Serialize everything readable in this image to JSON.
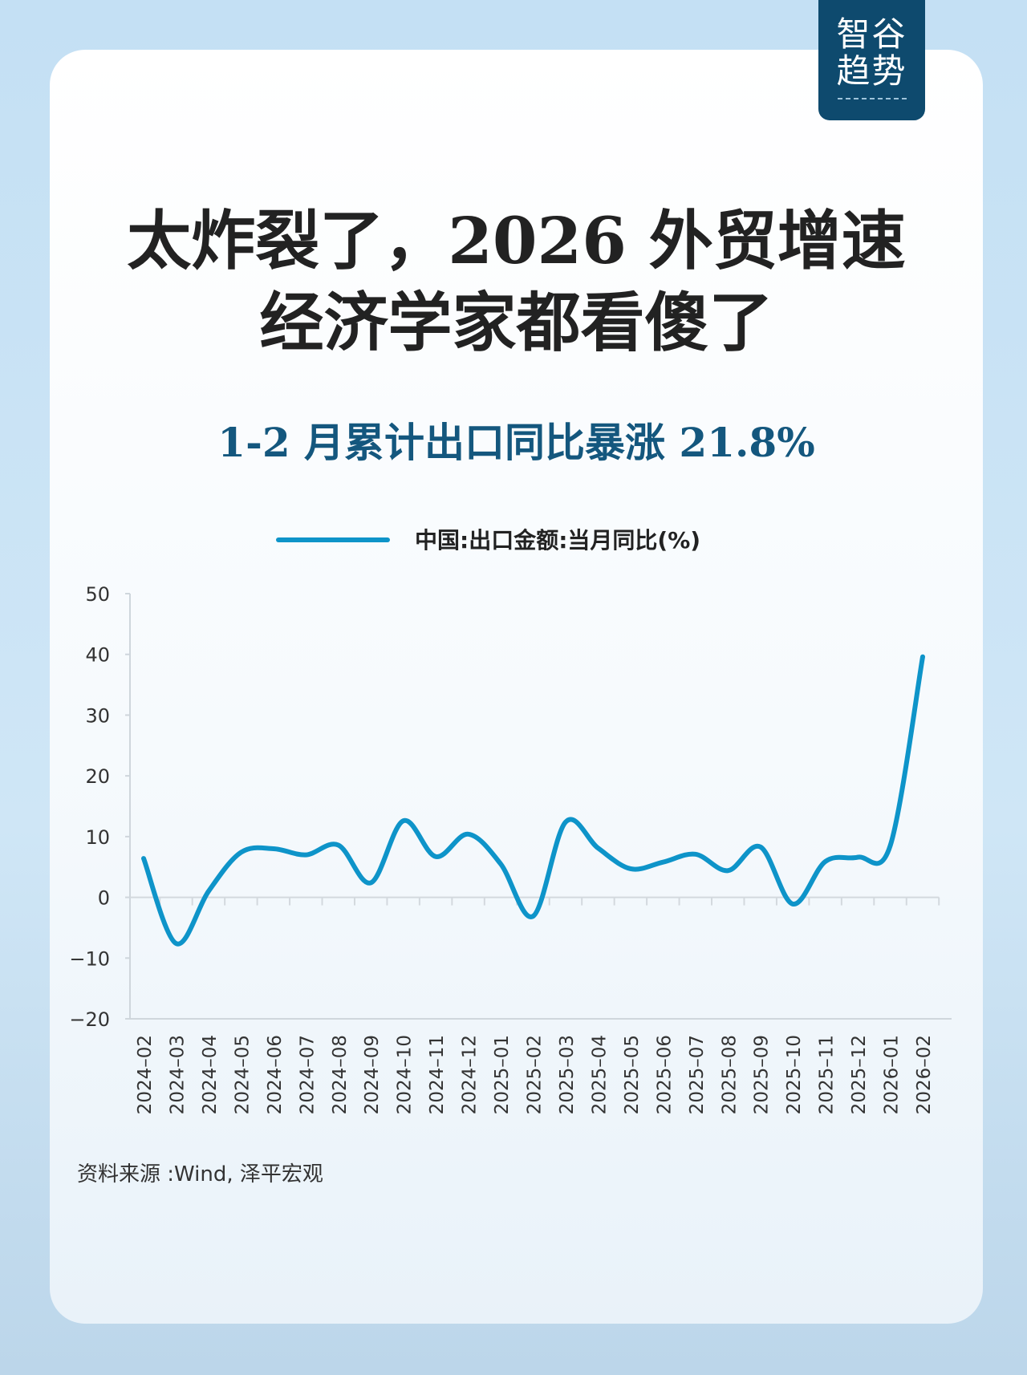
{
  "logo": {
    "line1": "智谷",
    "line2": "趋势"
  },
  "title": {
    "line1": "太炸裂了，2026 外贸增速",
    "line2": "经济学家都看傻了"
  },
  "subtitle": "1-2 月累计出口同比暴涨 21.8%",
  "source": "资料来源 :Wind, 泽平宏观",
  "colors": {
    "line": "#0e94c9",
    "title": "#222222",
    "subtitle": "#14577e",
    "background": "#c4e0f4",
    "logo_bg": "#0e4a6e"
  },
  "chart_data": {
    "type": "line",
    "title": "",
    "legend": {
      "entries": [
        "中国:出口金额:当月同比(%)"
      ],
      "placement": "top-center"
    },
    "xlabel": "",
    "ylabel": "",
    "ylim": [
      -20,
      50
    ],
    "yticks": [
      "50",
      "40",
      "30",
      "20",
      "10",
      "0",
      "-10",
      "-20"
    ],
    "categories": [
      "2024-02",
      "2024-03",
      "2024-04",
      "2024-05",
      "2024-06",
      "2024-07",
      "2024-08",
      "2024-09",
      "2024-10",
      "2024-11",
      "2024-12",
      "2025-01",
      "2025-02",
      "2025-03",
      "2025-04",
      "2025-05",
      "2025-06",
      "2025-07",
      "2025-08",
      "2025-09",
      "2025-10",
      "2025-11",
      "2025-12",
      "2026-01",
      "2026-02"
    ],
    "series": [
      {
        "name": "中国:出口金额:当月同比(%)",
        "values": [
          6.4,
          -7.6,
          1.0,
          7.4,
          8.0,
          7.0,
          8.6,
          2.4,
          12.6,
          6.7,
          10.4,
          5.5,
          -3.1,
          12.4,
          8.1,
          4.7,
          5.8,
          7.1,
          4.4,
          8.3,
          -1.1,
          5.9,
          6.6,
          8.5,
          39.6
        ]
      }
    ],
    "grid": false
  }
}
